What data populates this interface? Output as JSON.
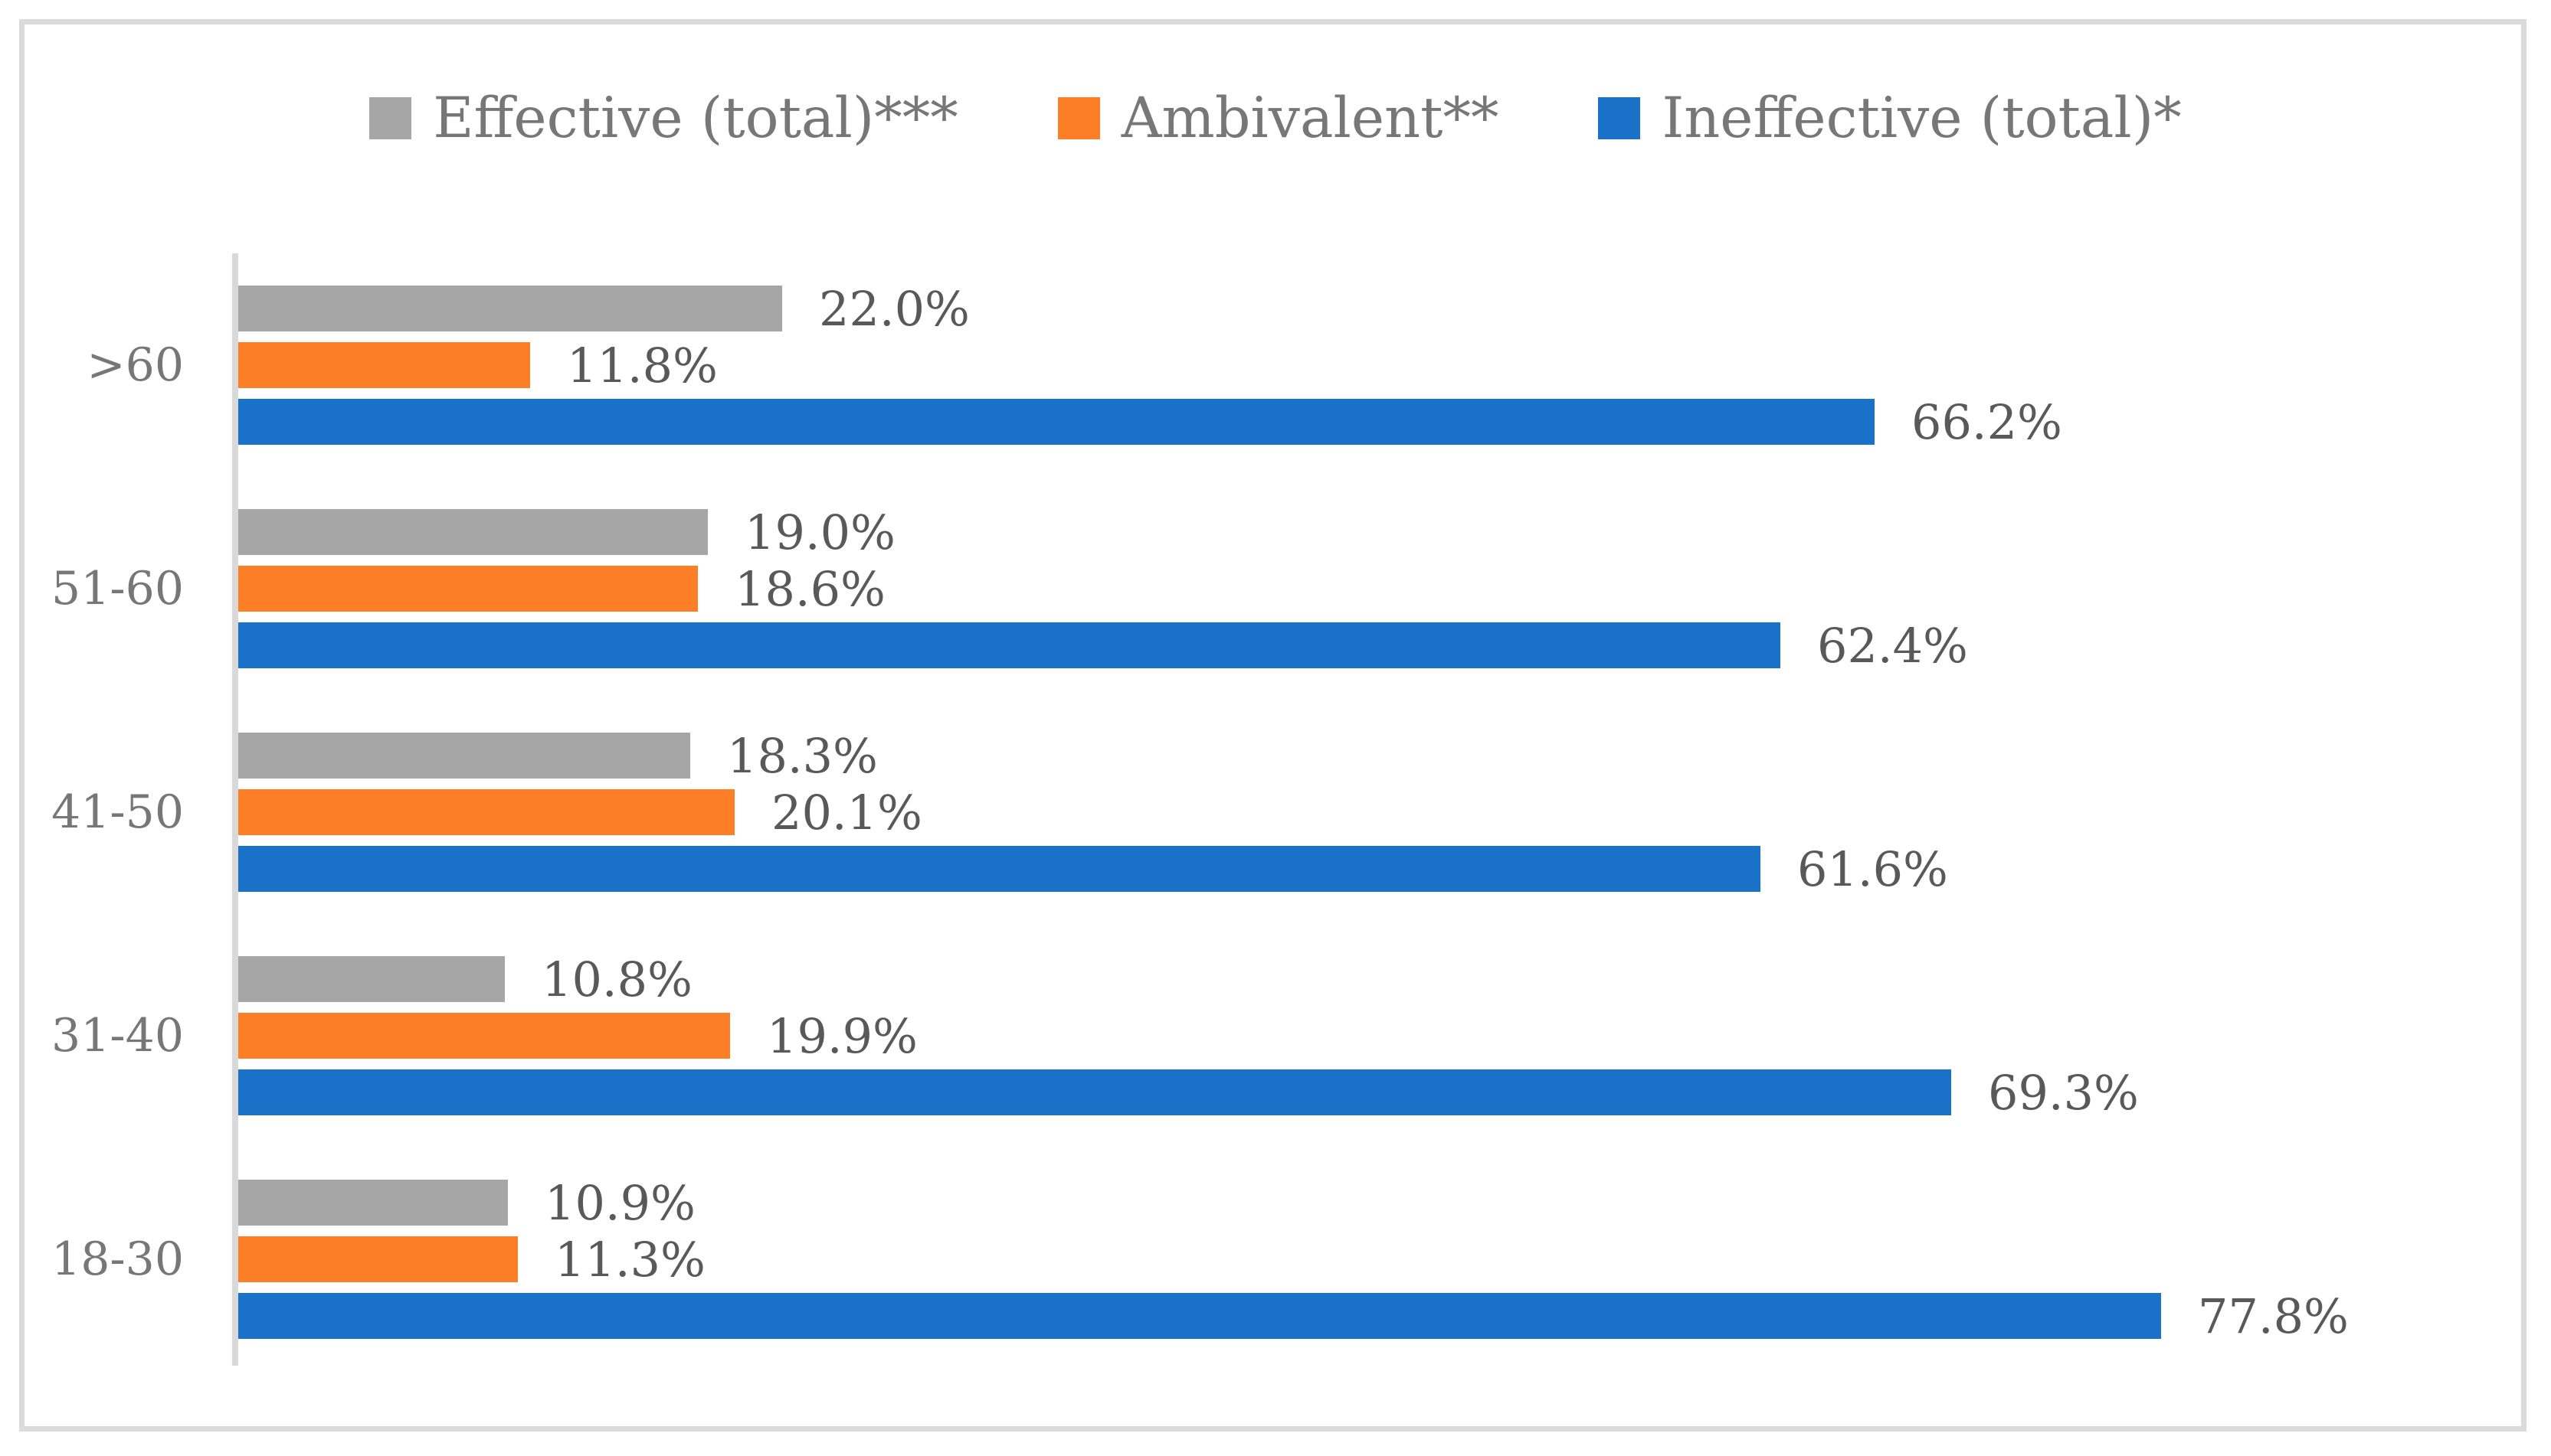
{
  "figure": {
    "background_color": "#ffffff",
    "border_color": "#dbdbdb",
    "axis_line_color": "#d9d9d9",
    "data_label_color": "#595959",
    "category_label_color": "#777777",
    "legend_text_color": "#777777"
  },
  "chart_data": {
    "type": "bar",
    "orientation": "horizontal",
    "title": "",
    "xlabel": "",
    "ylabel": "",
    "xlim": [
      0,
      93
    ],
    "grid": false,
    "legend_position": "top-center",
    "value_unit": "%",
    "categories": [
      ">60",
      "51-60",
      "41-50",
      "31-40",
      "18-30"
    ],
    "series": [
      {
        "name": "Effective (total)***",
        "color": "#a6a6a6",
        "values": [
          22.0,
          19.0,
          18.3,
          10.8,
          10.9
        ],
        "labels": [
          "22.0%",
          "19.0%",
          "18.3%",
          "10.8%",
          "10.9%"
        ]
      },
      {
        "name": "Ambivalent**",
        "color": "#fc7e26",
        "values": [
          11.8,
          18.6,
          20.1,
          19.9,
          11.3
        ],
        "labels": [
          "11.8%",
          "18.6%",
          "20.1%",
          "19.9%",
          "11.3%"
        ]
      },
      {
        "name": "Ineffective (total)*",
        "color": "#1a72c8",
        "values": [
          66.2,
          62.4,
          61.6,
          69.3,
          77.8
        ],
        "labels": [
          "66.2%",
          "62.4%",
          "61.6%",
          "69.3%",
          "77.8%"
        ]
      }
    ]
  }
}
